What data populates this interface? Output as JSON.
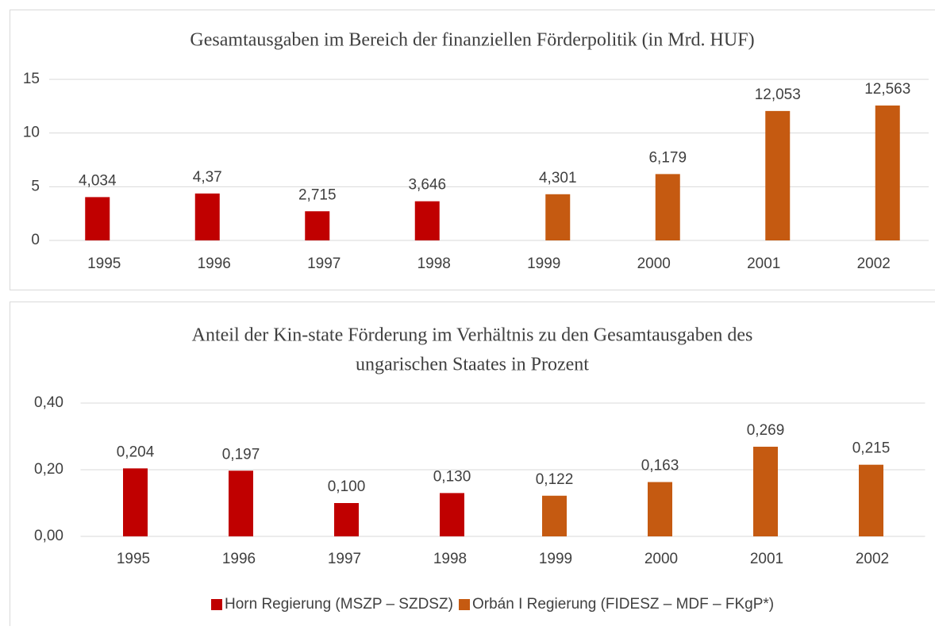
{
  "chart_data": [
    {
      "type": "bar",
      "title": "Gesamtausgaben im Bereich der finanziellen Förderpolitik (in Mrd. HUF)",
      "categories": [
        "1995",
        "1996",
        "1997",
        "1998",
        "1999",
        "2000",
        "2001",
        "2002"
      ],
      "series": [
        {
          "color": "#c00000",
          "values": [
            4.034,
            4.37,
            2.715,
            3.646,
            null,
            null,
            null,
            null
          ],
          "value_labels": [
            "4,034",
            "4,37",
            "2,715",
            "3,646",
            null,
            null,
            null,
            null
          ]
        },
        {
          "color": "#c55a11",
          "values": [
            null,
            null,
            null,
            null,
            4.301,
            6.179,
            12.053,
            12.563
          ],
          "value_labels": [
            null,
            null,
            null,
            null,
            "4,301",
            "6,179",
            "12,053",
            "12,563"
          ]
        }
      ],
      "ylim": [
        0,
        15
      ],
      "yticks": [
        0,
        5,
        10,
        15
      ],
      "grid": true
    },
    {
      "type": "bar",
      "title": [
        "Anteil der Kin-state Förderung im Verhältnis zu den Gesamtausgaben des",
        "ungarischen Staates in Prozent"
      ],
      "categories": [
        "1995",
        "1996",
        "1997",
        "1998",
        "1999",
        "2000",
        "2001",
        "2002"
      ],
      "series": [
        {
          "name": "Horn Regierung (MSZP – SZDSZ)",
          "color": "#c00000",
          "values": [
            0.204,
            0.197,
            0.1,
            0.13,
            null,
            null,
            null,
            null
          ],
          "value_labels": [
            "0,204",
            "0,197",
            "0,100",
            "0,130",
            null,
            null,
            null,
            null
          ]
        },
        {
          "name": "Orbán I Regierung (FIDESZ – MDF – FKgP*)",
          "color": "#c55a11",
          "values": [
            null,
            null,
            null,
            null,
            0.122,
            0.163,
            0.269,
            0.215
          ],
          "value_labels": [
            null,
            null,
            null,
            null,
            "0,122",
            "0,163",
            "0,269",
            "0,215"
          ]
        }
      ],
      "ylim": [
        0,
        0.4
      ],
      "yticks": [
        {
          "value": 0,
          "label": "0,00"
        },
        {
          "value": 0.2,
          "label": "0,20"
        },
        {
          "value": 0.4,
          "label": "0,40"
        }
      ],
      "grid": true,
      "legend": "bottom"
    }
  ]
}
